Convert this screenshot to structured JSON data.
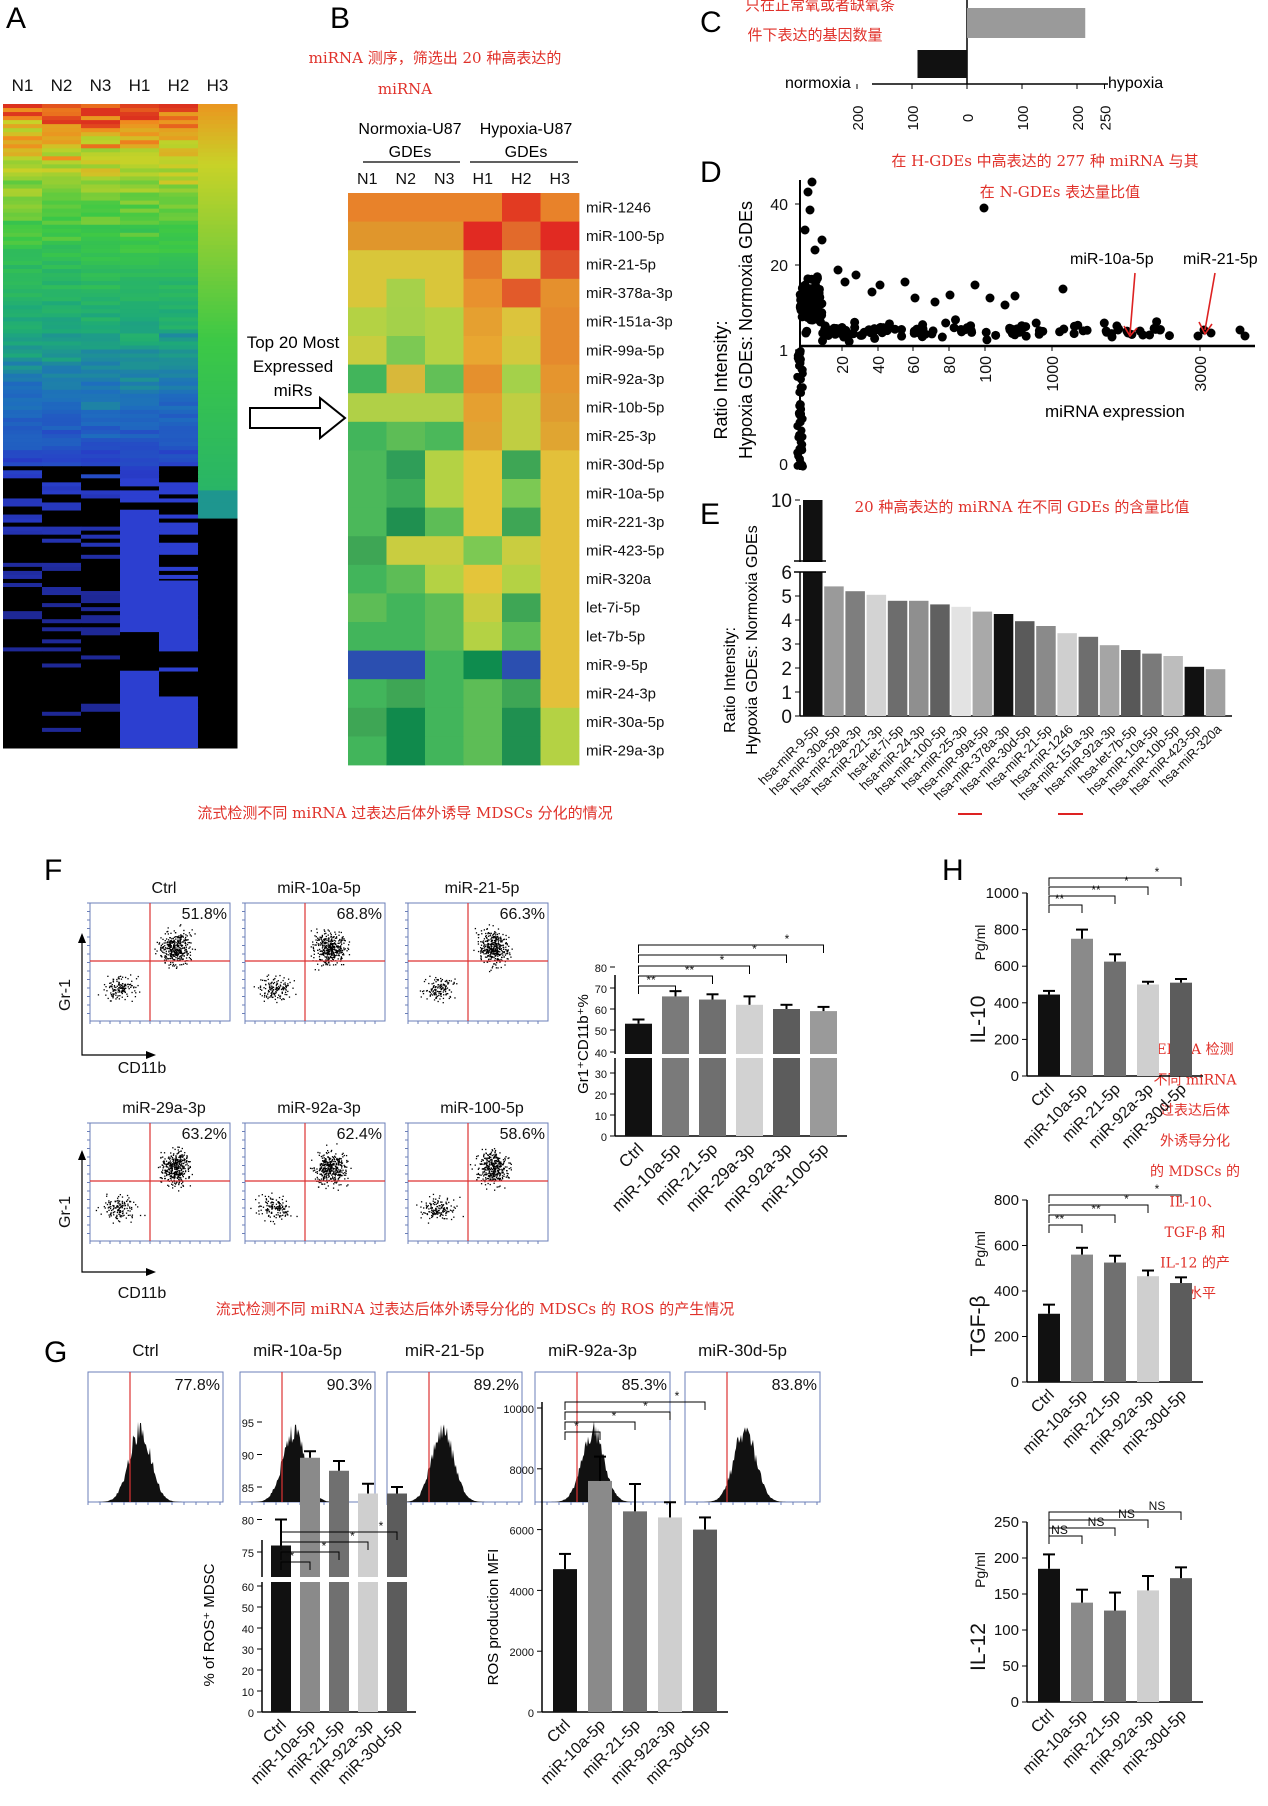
{
  "panels": {
    "A": "A",
    "B": "B",
    "C": "C",
    "D": "D",
    "E": "E",
    "F": "F",
    "G": "G",
    "H": "H"
  },
  "panel_a": {
    "columns": [
      "N1",
      "N2",
      "N3",
      "H1",
      "H2",
      "H3"
    ]
  },
  "arrow_label": [
    "Top 20 Most",
    "Expressed",
    "miRs"
  ],
  "panel_b": {
    "note": [
      "miRNA 测序，筛选出 20 种高表达的",
      "miRNA"
    ],
    "group_labels": [
      [
        "Normoxia-U87",
        "GDEs"
      ],
      [
        "Hypoxia-U87",
        "GDEs"
      ]
    ],
    "columns": [
      "N1",
      "N2",
      "N3",
      "H1",
      "H2",
      "H3"
    ],
    "rows": [
      "miR-1246",
      "miR-100-5p",
      "miR-21-5p",
      "miR-378a-3p",
      "miR-151a-3p",
      "miR-99a-5p",
      "miR-92a-3p",
      "miR-10b-5p",
      "miR-25-3p",
      "miR-30d-5p",
      "miR-10a-5p",
      "miR-221-3p",
      "miR-423-5p",
      "miR-320a",
      "let-7i-5p",
      "let-7b-5p",
      "miR-9-5p",
      "miR-24-3p",
      "miR-30a-5p",
      "miR-29a-3p"
    ]
  },
  "panel_c": {
    "note": [
      "只在正常氧或者缺氧条",
      "件下表达的基因数量"
    ],
    "left_label": "normoxia",
    "right_label": "hypoxia",
    "ticks": [
      "200",
      "100",
      "0",
      "100",
      "200",
      "250"
    ],
    "chart_data": {
      "type": "bar",
      "categories": [
        "normoxia",
        "hypoxia"
      ],
      "values": [
        90,
        215
      ]
    }
  },
  "panel_d": {
    "note": [
      "在 H-GDEs 中高表达的 277 种 miRNA 与其",
      "在 N-GDEs 表达量比值"
    ],
    "ylabel": [
      "Ratio Intensity:",
      "Hypoxia GDEs: Normoxia GDEs"
    ],
    "xlabel": "miRNA  expression",
    "yticks": [
      "40",
      "20",
      "1",
      "0"
    ],
    "xticks": [
      "20",
      "40",
      "60",
      "80",
      "100",
      "1000",
      "3000"
    ],
    "annotations": [
      "miR-10a-5p",
      "miR-21-5p"
    ]
  },
  "panel_e": {
    "note": "20 种高表达的 miRNA 在不同 GDEs 的含量比值",
    "ylabel": [
      "Ratio Intensity:",
      "Hypoxia GDEs: Normoxia GDEs"
    ],
    "yticks": [
      "10",
      "6",
      "5",
      "4",
      "3",
      "2",
      "1",
      "0"
    ],
    "chart_data": {
      "type": "bar",
      "categories": [
        "hsa-miR-9-5p",
        "hsa-miR-30a-5p",
        "hsa-miR-29a-3p",
        "hsa-miR-221-3p",
        "hsa-let-7i-5p",
        "hsa-miR-24-3p",
        "hsa-miR-100-5p",
        "hsa-miR-25-3p",
        "hsa-miR-99a-5p",
        "hsa-miR-378a-3p",
        "hsa-miR-30d-5p",
        "hsa-miR-21-5p",
        "hsa-miR-1246",
        "hsa-miR-151a-3p",
        "hsa-miR-92a-3p",
        "hsa-let-7b-5p",
        "hsa-miR-10a-5p",
        "hsa-miR-10b-5p",
        "hsa-miR-423-5p",
        "hsa-miR-320a"
      ],
      "values": [
        10,
        5.4,
        5.2,
        5.05,
        4.8,
        4.8,
        4.65,
        4.55,
        4.35,
        4.25,
        3.95,
        3.75,
        3.45,
        3.3,
        2.95,
        2.75,
        2.6,
        2.5,
        2.05,
        1.95
      ],
      "colors": [
        "#111111",
        "#9a9a9a",
        "#7e7e7e",
        "#d3d3d3",
        "#6d6d6d",
        "#8f8f8f",
        "#606060",
        "#e3e3e3",
        "#a9a9a9",
        "#111111",
        "#5a5a5a",
        "#8a8a8a",
        "#cfcfcf",
        "#6e6e6e",
        "#a5a5a5",
        "#585858",
        "#7a7a7a",
        "#bdbdbd",
        "#111111",
        "#a0a0a0"
      ]
    }
  },
  "section_f_note": "流式检测不同 miRNA 过表达后体外诱导 MDSCs 分化的情况",
  "panel_f": {
    "ylabel": "Gr-1",
    "xlabel": "CD11b",
    "plots": [
      {
        "title": "Ctrl",
        "pct": "51.8%"
      },
      {
        "title": "miR-10a-5p",
        "pct": "68.8%"
      },
      {
        "title": "miR-21-5p",
        "pct": "66.3%"
      },
      {
        "title": "miR-29a-3p",
        "pct": "63.2%"
      },
      {
        "title": "miR-92a-3p",
        "pct": "62.4%"
      },
      {
        "title": "miR-100-5p",
        "pct": "58.6%"
      }
    ],
    "bar_ylabel": "Gr1⁺CD11b⁺%",
    "bar_yticks": [
      "80",
      "70",
      "60",
      "50",
      "40",
      "30",
      "20",
      "10",
      "0"
    ],
    "sig": [
      "**",
      "**",
      "*",
      "*",
      "*"
    ],
    "chart_data": {
      "type": "bar",
      "categories": [
        "Ctrl",
        "miR-10a-5p",
        "miR-21-5p",
        "miR-29a-3p",
        "miR-92a-3p",
        "miR-100-5p"
      ],
      "values": [
        53,
        66,
        64.5,
        62,
        60,
        59
      ],
      "errors": [
        2,
        2.5,
        2.5,
        4,
        2,
        2
      ],
      "colors": [
        "#111111",
        "#7a7a7a",
        "#6f6f6f",
        "#d2d2d2",
        "#5c5c5c",
        "#9a9a9a"
      ]
    }
  },
  "section_g_note": "流式检测不同 miRNA 过表达后体外诱导分化的 MDSCs 的 ROS 的产生情况",
  "panel_g": {
    "hists": [
      {
        "title": "Ctrl",
        "pct": "77.8%"
      },
      {
        "title": "miR-10a-5p",
        "pct": "90.3%"
      },
      {
        "title": "miR-21-5p",
        "pct": "89.2%"
      },
      {
        "title": "miR-92a-3p",
        "pct": "85.3%"
      },
      {
        "title": "miR-30d-5p",
        "pct": "83.8%"
      }
    ],
    "left": {
      "ylabel": "% of ROS⁺ MDSC",
      "yticks": [
        "95",
        "90",
        "85",
        "80",
        "75",
        "60",
        "50",
        "40",
        "30",
        "20",
        "10",
        "0"
      ],
      "sig": [
        "**",
        "*",
        "*",
        "*"
      ],
      "chart_data": {
        "type": "bar",
        "categories": [
          "Ctrl",
          "miR-10a-5p",
          "miR-21-5p",
          "miR-92a-3p",
          "miR-30d-5p"
        ],
        "values": [
          76,
          89.5,
          87.5,
          84,
          84
        ],
        "errors": [
          4,
          1,
          1.5,
          1.5,
          1
        ],
        "colors": [
          "#111111",
          "#8a8a8a",
          "#707070",
          "#cfcfcf",
          "#5c5c5c"
        ]
      }
    },
    "right": {
      "ylabel": "ROS production MFI",
      "yticks": [
        "10000",
        "8000",
        "6000",
        "4000",
        "2000",
        "0"
      ],
      "sig": [
        "*",
        "*",
        "*",
        "*"
      ],
      "chart_data": {
        "type": "bar",
        "categories": [
          "Ctrl",
          "miR-10a-5p",
          "miR-21-5p",
          "miR-92a-3p",
          "miR-30d-5p"
        ],
        "values": [
          4700,
          7600,
          6600,
          6400,
          6000
        ],
        "errors": [
          500,
          800,
          900,
          500,
          400
        ],
        "colors": [
          "#111111",
          "#8a8a8a",
          "#707070",
          "#cfcfcf",
          "#5c5c5c"
        ]
      }
    }
  },
  "panel_h": {
    "note": [
      "ELISA 检测",
      "不同 miRNA",
      "过表达后体",
      "外诱导分化",
      "的 MDSCs 的",
      "IL-10、",
      "TGF-β 和",
      "IL-12 的产",
      "生水平"
    ],
    "categories": [
      "Ctrl",
      "miR-10a-5p",
      "miR-21-5p",
      "miR-92a-3p",
      "miR-30d-5p"
    ],
    "colors": [
      "#111111",
      "#8a8a8a",
      "#707070",
      "#cfcfcf",
      "#5c5c5c"
    ],
    "unit": "Pg/ml",
    "il10": {
      "title": "IL-10",
      "yticks": [
        "1000",
        "800",
        "600",
        "400",
        "200",
        "0"
      ],
      "sig": [
        "**",
        "**",
        "*",
        "*"
      ],
      "chart_data": {
        "type": "bar",
        "values": [
          445,
          750,
          625,
          500,
          510
        ],
        "errors": [
          20,
          50,
          40,
          15,
          20
        ]
      }
    },
    "tgfb": {
      "title": "TGF-β",
      "yticks": [
        "800",
        "600",
        "400",
        "200",
        "0"
      ],
      "sig": [
        "**",
        "**",
        "*",
        "*"
      ],
      "chart_data": {
        "type": "bar",
        "values": [
          300,
          560,
          525,
          465,
          435
        ],
        "errors": [
          40,
          30,
          30,
          25,
          25
        ]
      }
    },
    "il12": {
      "title": "IL-12",
      "yticks": [
        "250",
        "200",
        "150",
        "100",
        "50",
        "0"
      ],
      "sig": [
        "NS",
        "NS",
        "NS",
        "NS"
      ],
      "chart_data": {
        "type": "bar",
        "values": [
          185,
          138,
          127,
          155,
          172
        ],
        "errors": [
          20,
          18,
          25,
          20,
          15
        ]
      }
    }
  }
}
